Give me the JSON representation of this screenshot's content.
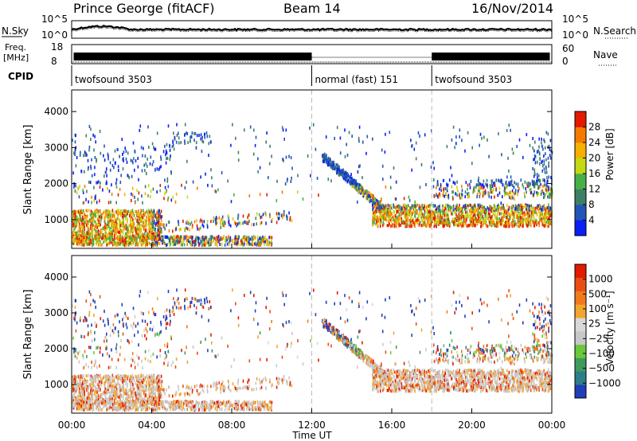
{
  "header": {
    "station": "Prince George (fitACF)",
    "beam": "Beam 14",
    "date": "16/Nov/2014"
  },
  "strips": {
    "nsky_label": "N.Sky",
    "nsky_ticks": [
      "10^5",
      "10^0"
    ],
    "nsearch_label": "N.Search",
    "nsearch_ticks": [
      "10^5",
      "10^0"
    ],
    "freq_label_1": "Freq.",
    "freq_label_2": "[MHz]",
    "freq_ticks": [
      "18",
      "8"
    ],
    "nave_label": "Nave",
    "nave_ticks": [
      "60",
      "0"
    ],
    "cpid_label": "CPID",
    "cpid_segments": [
      {
        "label": "twofsound 3503",
        "start_hour": 0,
        "end_hour": 12
      },
      {
        "label": "normal (fast) 151",
        "start_hour": 12,
        "end_hour": 18
      },
      {
        "label": "twofsound 3503",
        "start_hour": 18,
        "end_hour": 24
      }
    ]
  },
  "chart_data": [
    {
      "type": "heatmap",
      "quantity": "power",
      "ylabel": "Slant Range [km]",
      "yticks": [
        "1000",
        "2000",
        "3000",
        "4000"
      ],
      "ylim": [
        200,
        4600
      ],
      "xlim": [
        0,
        24
      ],
      "colorbar_label": "Power [dB]",
      "colorbar_ticks": [
        "4",
        "8",
        "12",
        "16",
        "20",
        "24",
        "28"
      ],
      "colorbar_range": [
        0,
        32
      ],
      "colors": [
        "#0a1ff5",
        "#2255b8",
        "#3f7f65",
        "#46b046",
        "#c4d814",
        "#f5b000",
        "#f47a00",
        "#e21a00"
      ]
    },
    {
      "type": "heatmap",
      "quantity": "velocity",
      "ylabel": "Slant Range [km]",
      "yticks": [
        "1000",
        "2000",
        "3000",
        "4000"
      ],
      "ylim": [
        200,
        4600
      ],
      "xlim": [
        0,
        24
      ],
      "colorbar_label": "Velocity [m s⁻¹]",
      "colorbar_ticks": [
        "1000",
        "500",
        "100",
        "25",
        "−25",
        "−100",
        "−500",
        "−1000"
      ],
      "colors": [
        "#1f3fb8",
        "#2e7d8a",
        "#3f9a5c",
        "#6ac83a",
        "#c8c8c8",
        "#d8d8d8",
        "#f2a62d",
        "#f07a1c",
        "#ea4e12",
        "#e21a00"
      ]
    }
  ],
  "xaxis": {
    "label": "Time UT",
    "ticks": [
      "00:00",
      "04:00",
      "08:00",
      "12:00",
      "16:00",
      "20:00",
      "00:00"
    ]
  }
}
